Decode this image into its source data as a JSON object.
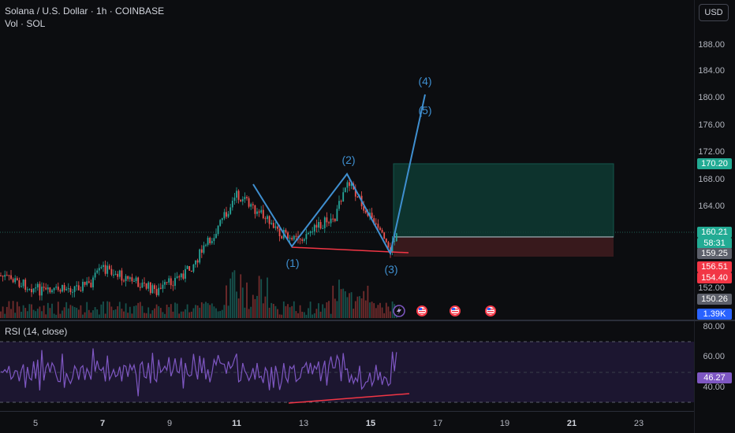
{
  "legend": {
    "title": "Solana / U.S. Dollar · 1h · COINBASE",
    "volume": "Vol · SOL"
  },
  "currency_button": "USD",
  "price_axis": [
    "188.00",
    "184.00",
    "180.00",
    "176.00",
    "172.00",
    "168.00",
    "164.00",
    "152.00"
  ],
  "badges": {
    "target": "170.20",
    "last_price": "160.21",
    "countdown": "58:31",
    "entry": "159.25",
    "stop_top": "156.51",
    "stop_bottom": "154.40",
    "low": "150.26",
    "volume": "1.39K"
  },
  "rsi": {
    "title": "RSI (14, close)",
    "axis": [
      "80.00",
      "60.00",
      "40.00"
    ],
    "value": "46.27"
  },
  "time_axis": [
    "5",
    "7",
    "9",
    "11",
    "13",
    "15",
    "17",
    "19",
    "21",
    "23"
  ],
  "time_axis_bold": [
    "7",
    "11",
    "15",
    "21"
  ],
  "wave_labels": [
    "(1)",
    "(2)",
    "(3)",
    "(4)",
    "(5)"
  ],
  "colors": {
    "background": "#0c0d10",
    "up": "#26a69a",
    "down": "#ef5350",
    "wave": "#3f8fd0",
    "rsi_line": "#7e57c2",
    "target_zone": "#0e3b33",
    "stop_zone": "#3b1a1d",
    "badge_green": "#22ab94",
    "badge_red": "#f23645",
    "badge_gray": "#5d606b",
    "badge_purple": "#7e57c2",
    "badge_blue": "#2962ff"
  },
  "icons": [
    "lightning-event-icon",
    "us-flag-event-icon",
    "us-flag-event-icon",
    "us-flag-event-icon"
  ]
}
